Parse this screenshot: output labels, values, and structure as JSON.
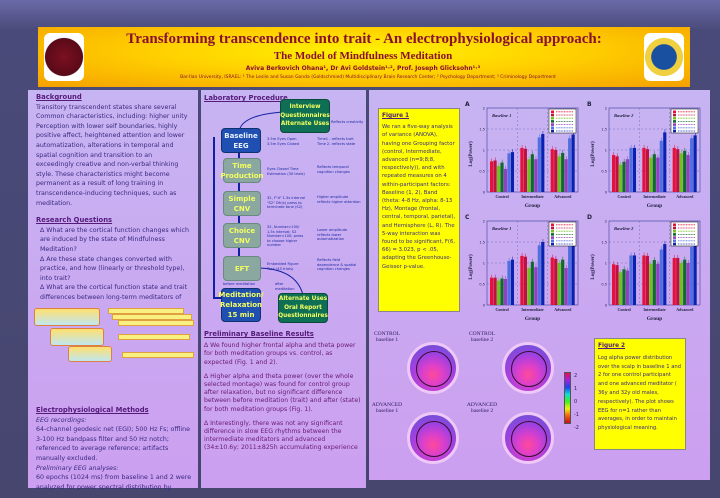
{
  "header": {
    "title": "Transforming transcendence into trait - An electrophysiological approach:",
    "subtitle": "The Model of Mindfulness Meditation",
    "authors": "Aviva Berkovich Ohana¹, Dr Avi Goldstein¹·², Prof. Joseph Glicksohn¹·³",
    "affiliations": "Bar-Ilan University, ISRAEL: ¹ The Leslie and Susan Gonda (Goldschmied) Multidisciplinary Brain Research Center; ² Psychology Department; ³ Criminology Department",
    "left_logo": "The Leslie and Susan Gonda (Goldschmied) Multi Disciplinary Research Center",
    "right_logo": "Bar-Ilan University"
  },
  "background": {
    "heading": "Background",
    "text": "Transitory transcendent states share several Common characteristics, including: higher unity Perception with lower self boundaries, highly positive affect, heightened attention and lower automatization, alterations in temporal and spatial cognition and transition to an exceedingly creative and non-verbal thinking style. These characteristics might become permanent as a result of long training in transcendence-inducing techniques, such as meditation."
  },
  "research_questions": {
    "heading": "Research Questions",
    "items": [
      "∆ What are the cortical function changes which are induced by the state of Mindfulness Meditation?",
      "∆ Are these state changes converted with practice, and how (linearly or threshold type), into trait?",
      "∆ What are the cortical function state and trait differences between long-term meditators of"
    ]
  },
  "methods": {
    "heading": "Electrophysiological Methods",
    "eeg_label": "EEG recordings:",
    "eeg_text": "64-channel geodesic net (EGI); 500 Hz Fs; offline 3-100 Hz bandpass filter and 50 Hz notch; referenced to average reference; artifacts manually excluded.",
    "prelim_label": "Preliminary EEG analyses:",
    "prelim_text": "60 epochs (1024 ms) from baseline 1 and 2 were analyzed for power spectral distribution by"
  },
  "procedure": {
    "heading": "Laboratory Procedure",
    "interview": "Interview Questionnaires Alternate Uses",
    "interview_note": "Reflects creativity",
    "steps": [
      {
        "label": "Baseline EEG",
        "desc": "3.5m Eyes Open 3.5m Eyes Closed",
        "note": "Time1 - reflects trait Time 2- reflects state"
      },
      {
        "label": "Time Production",
        "desc": "Eyes Closed Time Estimation (30 trials)",
        "note": "Reflects temporal cognition changes"
      },
      {
        "label": "Simple CNV",
        "desc": "32, F\"d\" 1.5s interval \"S2\" Dfr(s) press to terminate tone (S2)",
        "note": "Higher amplitude reflects higher attention"
      },
      {
        "label": "Choice CNV",
        "desc": "32, Number>100/ 1.5s interval; S2 Number<100; press to choose higher number",
        "note": "Lower amplitude reflects lower automatization"
      },
      {
        "label": "EFT",
        "desc": "Embedded Figure Task (45 trials)",
        "note": "Reflects field dependence & spatial cognition changes"
      }
    ],
    "before": "before meditation",
    "after": "after meditation",
    "meditation": "Meditation/ Relaxation 15 min",
    "final": "Alternate Uses Oral Report Questionnaires"
  },
  "results": {
    "heading": "Preliminary Baseline Results",
    "items": [
      "∆ We found higher frontal alpha and theta power for both meditation groups vs. control, as expected (Fig. 1 and 2).",
      "∆ Higher alpha and theta power (over the whole selected montage) was found for control group after relaxation, but no significant difference between before meditation (trait) and after (state) for both meditation groups (Fig. 1).",
      "∆ Interestingly, there was not any significant difference in slow EEG rhythms between the intermediate meditators and advanced (34±10.6y; 2011±825h accumulating experience"
    ]
  },
  "figure1": {
    "heading": "Figure 1",
    "text": "We ran a five-way analysis of variance (ANOVA), having one Grouping factor (control, Intermediate, advanced (n=9;8;8, respectively)), and with repeated measures on 4 within-participant factors: Baseline (1, 2), Band (theta: 4-8 Hz, alpha: 8-13 Hz), Montage (frontal, central, temporal, parietal), and Hemisphere (L, R). The 5-way interaction was found to be significant, F(6, 66) = 3.023, p < .05, adapting the Greenhouse-Geisser p-value."
  },
  "figure2": {
    "heading": "Figure 2",
    "text": "Log alpha power distribution over the scalp in baseline 1 and 2 for one control participant and one advanced meditator ( 36y and 32y old males, respectively). The plot shows EEG for n=1 rather than averages, in order to maintain physiological meaning.",
    "maps": [
      {
        "group": "CONTROL",
        "baseline": "baseline 1"
      },
      {
        "group": "CONTROL",
        "baseline": "baseline 2"
      },
      {
        "group": "ADVANCED",
        "baseline": "baseline 1"
      },
      {
        "group": "ADVANCED",
        "baseline": "baseline 2"
      }
    ],
    "colorbar_ticks": [
      "2",
      "1",
      "0",
      "-1",
      "-2"
    ]
  },
  "colors": {
    "header": "#ffd000",
    "title": "#8a1030",
    "panel": "#c9a8f0",
    "figure_box": "#ffff00",
    "series": [
      "#e8103a",
      "#c01040",
      "#70c020",
      "#106a30",
      "#9040c0",
      "#5070e0",
      "#0a20b0"
    ]
  },
  "chart_data": [
    {
      "panel": "A",
      "type": "bar",
      "title": "Baseline 1",
      "xlabel": "Group",
      "ylabel": "Log(Power)",
      "ylim": [
        0,
        2
      ],
      "yticks": [
        "0",
        "0.5",
        "1",
        "1.5",
        "2"
      ],
      "categories": [
        "Control",
        "Intermediate",
        "Advanced"
      ],
      "grid": true,
      "legend": "top-right",
      "series": [
        {
          "values": [
            0.73,
            1.05,
            1.02
          ]
        },
        {
          "values": [
            0.75,
            1.03,
            1.0
          ]
        },
        {
          "values": [
            0.62,
            0.78,
            0.85
          ]
        },
        {
          "values": [
            0.7,
            0.9,
            0.93
          ]
        },
        {
          "values": [
            0.55,
            0.78,
            0.78
          ]
        },
        {
          "values": [
            0.92,
            1.3,
            1.28
          ]
        },
        {
          "values": [
            0.95,
            1.38,
            1.37
          ]
        }
      ]
    },
    {
      "panel": "B",
      "type": "bar",
      "title": "Baseline 2",
      "xlabel": "Group",
      "ylabel": "Log(Power)",
      "ylim": [
        0,
        2
      ],
      "yticks": [
        "0",
        "0.5",
        "1",
        "1.5",
        "2"
      ],
      "categories": [
        "Control",
        "Intermediate",
        "Advanced"
      ],
      "grid": true,
      "legend": "top-right",
      "series": [
        {
          "values": [
            0.88,
            1.05,
            1.05
          ]
        },
        {
          "values": [
            0.85,
            1.02,
            1.02
          ]
        },
        {
          "values": [
            0.65,
            0.82,
            0.92
          ]
        },
        {
          "values": [
            0.72,
            0.9,
            0.98
          ]
        },
        {
          "values": [
            0.78,
            0.82,
            0.88
          ]
        },
        {
          "values": [
            1.05,
            1.22,
            1.28
          ]
        },
        {
          "values": [
            1.05,
            1.42,
            1.35
          ]
        }
      ]
    },
    {
      "panel": "C",
      "type": "bar",
      "title": "Baseline 1",
      "xlabel": "Group",
      "ylabel": "Log(Power)",
      "ylim": [
        0,
        2
      ],
      "yticks": [
        "0",
        "0.5",
        "1",
        "1.5",
        "2"
      ],
      "categories": [
        "Control",
        "Intermediate",
        "Advanced"
      ],
      "grid": true,
      "legend": "top-right",
      "series": [
        {
          "values": [
            0.65,
            1.17,
            1.13
          ]
        },
        {
          "values": [
            0.65,
            1.15,
            1.1
          ]
        },
        {
          "values": [
            0.58,
            0.88,
            1.0
          ]
        },
        {
          "values": [
            0.63,
            1.03,
            1.08
          ]
        },
        {
          "values": [
            0.62,
            0.9,
            0.88
          ]
        },
        {
          "values": [
            1.05,
            1.42,
            1.4
          ]
        },
        {
          "values": [
            1.08,
            1.5,
            1.5
          ]
        }
      ]
    },
    {
      "panel": "D",
      "type": "bar",
      "title": "Baseline 2",
      "xlabel": "Group",
      "ylabel": "Log(Power)",
      "ylim": [
        0,
        2
      ],
      "yticks": [
        "0",
        "0.5",
        "1",
        "1.5",
        "2"
      ],
      "categories": [
        "Control",
        "Intermediate",
        "Advanced"
      ],
      "grid": true,
      "legend": "top-right",
      "series": [
        {
          "values": [
            0.97,
            1.18,
            1.12
          ]
        },
        {
          "values": [
            0.95,
            1.17,
            1.12
          ]
        },
        {
          "values": [
            0.78,
            0.98,
            1.0
          ]
        },
        {
          "values": [
            0.85,
            1.07,
            1.08
          ]
        },
        {
          "values": [
            0.82,
            0.98,
            1.0
          ]
        },
        {
          "values": [
            1.18,
            1.32,
            1.38
          ]
        },
        {
          "values": [
            1.18,
            1.45,
            1.43
          ]
        }
      ]
    }
  ]
}
